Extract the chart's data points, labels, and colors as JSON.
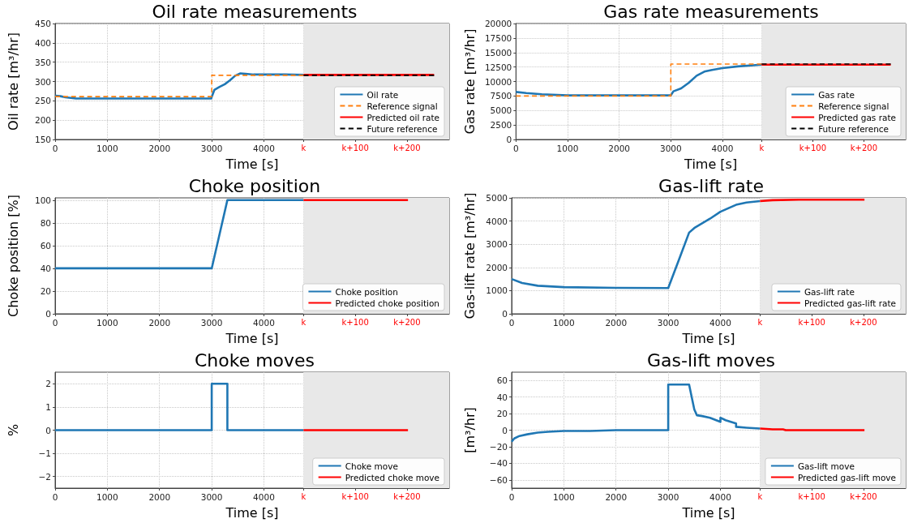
{
  "chart_data": [
    {
      "type": "line",
      "title": "Oil rate measurements",
      "xlabel": "Time [s]",
      "ylabel": "Oil rate [m³/hr]",
      "xlim": [
        0,
        7550
      ],
      "xticks": [
        0,
        1000,
        2000,
        3000,
        4000,
        {
          "value": 4760,
          "label": "k"
        },
        {
          "value": 5750,
          "label": "k+100"
        },
        {
          "value": 6740,
          "label": "k+200"
        }
      ],
      "ylim": [
        150,
        450
      ],
      "yticks": [
        150,
        200,
        250,
        300,
        350,
        400,
        450
      ],
      "grid": true,
      "legend": "bottom right",
      "marker": "none",
      "bands": [
        {
          "axis": "x",
          "from": 4760,
          "to": 7550,
          "color": "#e8e8e8"
        }
      ],
      "series": [
        {
          "name": "Oil rate",
          "color": "#1f77b4",
          "line_style": "solid",
          "x": [
            0,
            100,
            200,
            400,
            1000,
            2000,
            2990,
            3000,
            3050,
            3150,
            3250,
            3350,
            3450,
            3550,
            3650,
            3800,
            4000,
            4400,
            4760
          ],
          "values": [
            263,
            262,
            259,
            256,
            256,
            256,
            256,
            260,
            278,
            286,
            293,
            303,
            315,
            321,
            320,
            318,
            318,
            318,
            317
          ]
        },
        {
          "name": "Reference signal",
          "color": "#ff7f0e",
          "line_style": "dashed",
          "x": [
            0,
            3000,
            3000,
            4760
          ],
          "values": [
            261,
            261,
            316,
            316
          ]
        },
        {
          "name": "Predicted oil rate",
          "color": "#ff0000",
          "line_style": "solid",
          "x": [
            4760,
            7260
          ],
          "values": [
            317,
            317
          ]
        },
        {
          "name": "Future reference",
          "color": "#000000",
          "line_style": "dashed",
          "x": [
            4760,
            7260
          ],
          "values": [
            316,
            316
          ]
        }
      ]
    },
    {
      "type": "line",
      "title": "Gas rate measurements",
      "xlabel": "Time [s]",
      "ylabel": "Gas rate [m³/hr]",
      "xlim": [
        0,
        7550
      ],
      "xticks": [
        0,
        1000,
        2000,
        3000,
        4000,
        {
          "value": 4760,
          "label": "k"
        },
        {
          "value": 5750,
          "label": "k+100"
        },
        {
          "value": 6740,
          "label": "k+200"
        }
      ],
      "ylim": [
        0,
        20000
      ],
      "yticks": [
        0,
        2500,
        5000,
        7500,
        10000,
        12500,
        15000,
        17500,
        20000
      ],
      "grid": true,
      "legend": "bottom right",
      "marker": "none",
      "bands": [
        {
          "axis": "x",
          "from": 4760,
          "to": 7550,
          "color": "#e8e8e8"
        }
      ],
      "series": [
        {
          "name": "Gas rate",
          "color": "#1f77b4",
          "line_style": "solid",
          "x": [
            0,
            200,
            500,
            1000,
            2000,
            3000,
            3050,
            3200,
            3350,
            3500,
            3650,
            3800,
            4000,
            4300,
            4760
          ],
          "values": [
            8200,
            8000,
            7800,
            7600,
            7600,
            7600,
            8300,
            8800,
            9800,
            11000,
            11700,
            12000,
            12300,
            12600,
            12900
          ]
        },
        {
          "name": "Reference signal",
          "color": "#ff7f0e",
          "line_style": "dashed",
          "x": [
            0,
            3000,
            3000,
            4760
          ],
          "values": [
            7500,
            7500,
            13000,
            13000
          ]
        },
        {
          "name": "Predicted gas rate",
          "color": "#ff0000",
          "line_style": "solid",
          "x": [
            4760,
            5000,
            7260
          ],
          "values": [
            12900,
            12900,
            12900
          ]
        },
        {
          "name": "Future reference",
          "color": "#000000",
          "line_style": "dashed",
          "x": [
            4760,
            7260
          ],
          "values": [
            13000,
            13000
          ]
        }
      ]
    },
    {
      "type": "line",
      "title": "Choke position",
      "xlabel": "Time [s]",
      "ylabel": "Choke position [%]",
      "xlim": [
        0,
        7550
      ],
      "xticks": [
        0,
        1000,
        2000,
        3000,
        4000,
        {
          "value": 4760,
          "label": "k"
        },
        {
          "value": 5750,
          "label": "k+100"
        },
        {
          "value": 6740,
          "label": "k+200"
        }
      ],
      "ylim": [
        0,
        102
      ],
      "yticks": [
        0,
        20,
        40,
        60,
        80,
        100
      ],
      "grid": true,
      "legend": "bottom right",
      "marker": "none",
      "bands": [
        {
          "axis": "x",
          "from": 4760,
          "to": 7550,
          "color": "#e8e8e8"
        }
      ],
      "series": [
        {
          "name": "Choke position",
          "color": "#1f77b4",
          "line_style": "solid",
          "x": [
            0,
            3000,
            3300,
            4760
          ],
          "values": [
            40,
            40,
            100,
            100
          ]
        },
        {
          "name": "Predicted choke position",
          "color": "#ff0000",
          "line_style": "solid",
          "x": [
            4760,
            6760
          ],
          "values": [
            100,
            100
          ]
        }
      ]
    },
    {
      "type": "line",
      "title": "Gas-lift rate",
      "xlabel": "Time [s]",
      "ylabel": "Gas-lift rate [m³/hr]",
      "xlim": [
        0,
        7550
      ],
      "xticks": [
        0,
        1000,
        2000,
        3000,
        4000,
        {
          "value": 4760,
          "label": "k"
        },
        {
          "value": 5750,
          "label": "k+100"
        },
        {
          "value": 6740,
          "label": "k+200"
        }
      ],
      "ylim": [
        0,
        5000
      ],
      "yticks": [
        0,
        1000,
        2000,
        3000,
        4000,
        5000
      ],
      "grid": true,
      "legend": "bottom right",
      "marker": "none",
      "bands": [
        {
          "axis": "x",
          "from": 4760,
          "to": 7550,
          "color": "#e8e8e8"
        }
      ],
      "series": [
        {
          "name": "Gas-lift rate",
          "color": "#1f77b4",
          "line_style": "solid",
          "x": [
            0,
            200,
            500,
            1000,
            2000,
            3000,
            3200,
            3400,
            3500,
            3800,
            4000,
            4300,
            4500,
            4760
          ],
          "values": [
            1500,
            1330,
            1210,
            1150,
            1120,
            1110,
            2300,
            3500,
            3700,
            4100,
            4400,
            4700,
            4800,
            4860
          ]
        },
        {
          "name": "Predicted gas-lift rate",
          "color": "#ff0000",
          "line_style": "solid",
          "x": [
            4760,
            5000,
            5500,
            6760
          ],
          "values": [
            4860,
            4900,
            4920,
            4920
          ]
        }
      ]
    },
    {
      "type": "line",
      "title": "Choke moves",
      "xlabel": "Time [s]",
      "ylabel": "%",
      "xlim": [
        0,
        7550
      ],
      "xticks": [
        0,
        1000,
        2000,
        3000,
        4000,
        {
          "value": 4760,
          "label": "k"
        },
        {
          "value": 5750,
          "label": "k+100"
        },
        {
          "value": 6740,
          "label": "k+200"
        }
      ],
      "ylim": [
        -2.5,
        2.5
      ],
      "yticks": [
        -2,
        -1,
        0,
        1,
        2
      ],
      "grid": true,
      "legend": "bottom right",
      "marker": "none",
      "bands": [
        {
          "axis": "x",
          "from": 4760,
          "to": 7550,
          "color": "#e8e8e8"
        }
      ],
      "series": [
        {
          "name": "Choke move",
          "color": "#1f77b4",
          "line_style": "solid",
          "x": [
            0,
            3000,
            3000,
            3300,
            3300,
            4760
          ],
          "values": [
            0,
            0,
            2,
            2,
            0,
            0
          ]
        },
        {
          "name": "Predicted choke move",
          "color": "#ff0000",
          "line_style": "solid",
          "x": [
            4760,
            6760
          ],
          "values": [
            0,
            0
          ]
        }
      ]
    },
    {
      "type": "line",
      "title": "Gas-lift moves",
      "xlabel": "Time [s]",
      "ylabel": "[m³/hr]",
      "xlim": [
        0,
        7550
      ],
      "xticks": [
        0,
        1000,
        2000,
        3000,
        4000,
        {
          "value": 4760,
          "label": "k"
        },
        {
          "value": 5750,
          "label": "k+100"
        },
        {
          "value": 6740,
          "label": "k+200"
        }
      ],
      "ylim": [
        -70,
        70
      ],
      "yticks": [
        -60,
        -40,
        -20,
        0,
        20,
        40,
        60
      ],
      "grid": true,
      "legend": "bottom right",
      "marker": "none",
      "bands": [
        {
          "axis": "x",
          "from": 4760,
          "to": 7550,
          "color": "#e8e8e8"
        }
      ],
      "series": [
        {
          "name": "Gas-lift move",
          "color": "#1f77b4",
          "line_style": "solid",
          "x": [
            0,
            50,
            150,
            300,
            500,
            700,
            1000,
            1500,
            2000,
            3000,
            3000,
            3400,
            3450,
            3500,
            3550,
            3650,
            3800,
            4000,
            4000,
            4100,
            4300,
            4300,
            4500,
            4760
          ],
          "values": [
            -14,
            -10,
            -7,
            -5,
            -3,
            -2,
            -1,
            -1,
            0,
            0,
            55,
            55,
            40,
            25,
            18,
            17,
            15,
            10,
            15,
            12,
            8,
            4,
            3,
            2
          ]
        },
        {
          "name": "Predicted gas-lift move",
          "color": "#ff0000",
          "line_style": "solid",
          "x": [
            4760,
            5000,
            5200,
            5250,
            6760
          ],
          "values": [
            2,
            1,
            1,
            0,
            0
          ]
        }
      ]
    }
  ]
}
